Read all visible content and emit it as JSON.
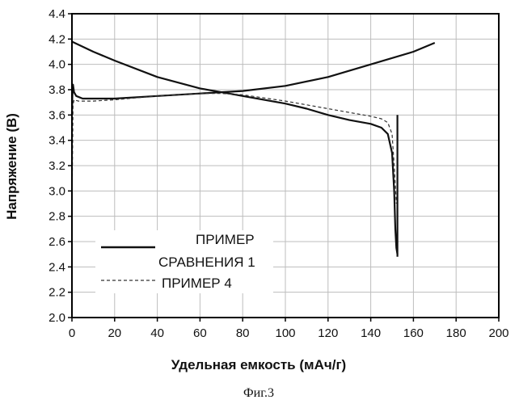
{
  "chart_data": {
    "type": "line",
    "xlabel": "Удельная емкость (мАч/г)",
    "ylabel": "Напряжение (В)",
    "xlim": [
      0,
      200
    ],
    "ylim": [
      2.0,
      4.4
    ],
    "x_ticks": [
      0,
      20,
      40,
      60,
      80,
      100,
      120,
      140,
      160,
      180,
      200
    ],
    "y_ticks": [
      2.0,
      2.2,
      2.4,
      2.6,
      2.8,
      3.0,
      3.2,
      3.4,
      3.6,
      3.8,
      4.0,
      4.2,
      4.4
    ],
    "y_tick_labels": [
      "2.0",
      "2.2",
      "2.4",
      "2.6",
      "2.8",
      "3.0",
      "3.2",
      "3.4",
      "3.6",
      "3.8",
      "4.0",
      "4.2",
      "4.4"
    ],
    "grid": true,
    "legend_position": "lower-left",
    "series": [
      {
        "name": "ПРИМЕР СРАВНЕНИЯ 1",
        "style": "solid",
        "color": "#111111",
        "segments": [
          {
            "x": [
              0,
              0.2,
              0.5,
              1,
              2,
              5,
              10,
              20,
              40,
              60,
              70,
              80,
              100,
              110,
              120,
              130,
              140,
              145,
              148,
              150,
              151,
              151.5,
              152,
              152.5
            ],
            "y": [
              3.6,
              3.75,
              3.84,
              3.78,
              3.75,
              3.73,
              3.73,
              3.73,
              3.75,
              3.77,
              3.78,
              3.75,
              3.69,
              3.65,
              3.6,
              3.56,
              3.53,
              3.5,
              3.45,
              3.3,
              3.0,
              2.7,
              2.55,
              2.5
            ]
          },
          {
            "x": [
              152.5,
              152.5
            ],
            "y": [
              2.48,
              3.6
            ]
          },
          {
            "x": [
              0,
              10,
              20,
              40,
              60,
              70,
              80,
              100,
              120,
              140,
              160,
              170
            ],
            "y": [
              4.18,
              4.1,
              4.03,
              3.9,
              3.81,
              3.78,
              3.79,
              3.83,
              3.9,
              4.0,
              4.1,
              4.17
            ]
          }
        ]
      },
      {
        "name": "ПРИМЕР 4",
        "style": "dashed",
        "color": "#333333",
        "segments": [
          {
            "x": [
              0,
              0.5,
              1,
              3,
              5,
              10,
              20,
              40,
              60,
              70,
              80,
              100,
              120,
              130,
              140,
              145,
              148,
              150,
              151,
              152
            ],
            "y": [
              2.8,
              3.68,
              3.72,
              3.71,
              3.71,
              3.71,
              3.72,
              3.75,
              3.77,
              3.77,
              3.76,
              3.71,
              3.65,
              3.62,
              3.59,
              3.57,
              3.54,
              3.45,
              3.2,
              2.9
            ]
          }
        ]
      }
    ]
  },
  "legend": {
    "series1_line1": "ПРИМЕР",
    "series1_line2": "СРАВНЕНИЯ 1",
    "series2_label": "ПРИМЕР 4"
  },
  "caption": "Фиг.3"
}
